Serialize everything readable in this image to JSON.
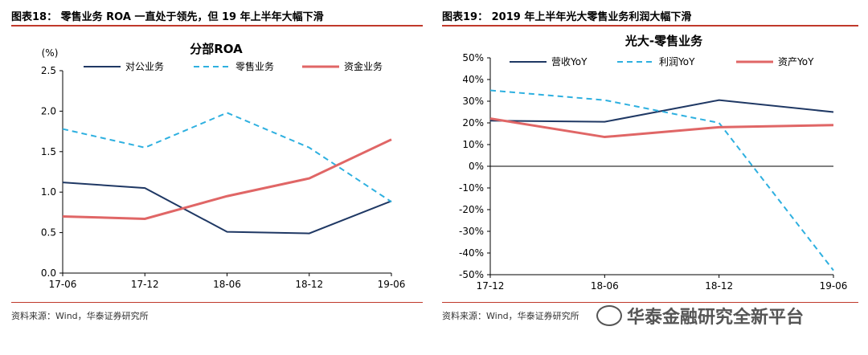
{
  "left_panel": {
    "figure_title": "图表18：  零售业务 ROA 一直处于领先，但 19 年上半年大幅下滑",
    "source": "资料来源：Wind，华泰证券研究所"
  },
  "right_panel": {
    "figure_title": "图表19：  2019 年上半年光大零售业务利润大幅下滑",
    "source": "资料来源：Wind，华泰证券研究所"
  },
  "watermark": {
    "text": "华泰金融研究全新平台",
    "icon": "wechat-icon"
  },
  "colors": {
    "navy": "#1f3864",
    "cyan": "#2eb0e0",
    "salmon": "#e06666",
    "rule": "#c0392b"
  },
  "chart_data": [
    {
      "type": "line",
      "title": "分部ROA",
      "unit_label": "(%)",
      "x": [
        "17-06",
        "17-12",
        "18-06",
        "18-12",
        "19-06"
      ],
      "ylim": [
        0,
        2.5
      ],
      "yticks": [
        "0.0",
        "0.5",
        "1.0",
        "1.5",
        "2.0",
        "2.5"
      ],
      "ytick_values": [
        0,
        0.5,
        1.0,
        1.5,
        2.0,
        2.5
      ],
      "legend": "top",
      "series": [
        {
          "name": "对公业务",
          "values": [
            1.12,
            1.05,
            0.51,
            0.49,
            0.89
          ],
          "color": "#1f3864",
          "dash": "solid"
        },
        {
          "name": "零售业务",
          "values": [
            1.78,
            1.55,
            1.98,
            1.55,
            0.88
          ],
          "color": "#2eb0e0",
          "dash": "dashed"
        },
        {
          "name": "资金业务",
          "values": [
            0.7,
            0.67,
            0.95,
            1.17,
            1.65
          ],
          "color": "#e06666",
          "dash": "solid"
        }
      ]
    },
    {
      "type": "line",
      "title": "光大-零售业务",
      "x": [
        "17-12",
        "18-06",
        "18-12",
        "19-06"
      ],
      "ylim": [
        -50,
        50
      ],
      "yticks": [
        "-50%",
        "-40%",
        "-30%",
        "-20%",
        "-10%",
        "0%",
        "10%",
        "20%",
        "30%",
        "40%",
        "50%"
      ],
      "ytick_values": [
        -50,
        -40,
        -30,
        -20,
        -10,
        0,
        10,
        20,
        30,
        40,
        50
      ],
      "legend": "top",
      "series": [
        {
          "name": "营收YoY",
          "values": [
            21,
            20.5,
            30.5,
            25
          ],
          "color": "#1f3864",
          "dash": "solid"
        },
        {
          "name": "利润YoY",
          "values": [
            35,
            30.5,
            20,
            -48
          ],
          "color": "#2eb0e0",
          "dash": "dashed"
        },
        {
          "name": "资产YoY",
          "values": [
            22,
            13.5,
            18,
            19
          ],
          "color": "#e06666",
          "dash": "solid"
        }
      ]
    }
  ]
}
